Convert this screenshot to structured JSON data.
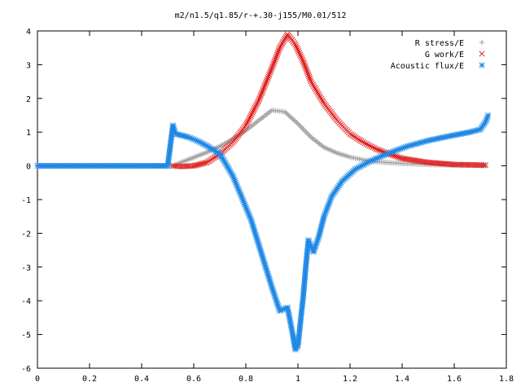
{
  "chart_data": {
    "type": "scatter",
    "title": "m2/n1.5/q1.85/r-+.30-j155/M0.01/512",
    "xlabel": "",
    "ylabel": "",
    "xlim": [
      0,
      1.8
    ],
    "ylim": [
      -6,
      4
    ],
    "x_ticks": [
      "0",
      "0.2",
      "0.4",
      "0.6",
      "0.8",
      "1",
      "1.2",
      "1.4",
      "1.6",
      "1.8"
    ],
    "y_ticks": [
      "4",
      "3",
      "2",
      "1",
      "0",
      "-1",
      "-2",
      "-3",
      "-4",
      "-5",
      "-6"
    ],
    "grid": false,
    "legend_position": "top-right",
    "series": [
      {
        "name": "R stress/E",
        "marker": "plus",
        "color": "#a0a0a0",
        "points": [
          [
            0.0,
            0.0
          ],
          [
            0.1,
            0.0
          ],
          [
            0.2,
            0.0
          ],
          [
            0.3,
            0.0
          ],
          [
            0.4,
            0.0
          ],
          [
            0.52,
            0.0
          ],
          [
            0.55,
            0.1
          ],
          [
            0.6,
            0.25
          ],
          [
            0.65,
            0.4
          ],
          [
            0.7,
            0.58
          ],
          [
            0.75,
            0.8
          ],
          [
            0.8,
            1.05
          ],
          [
            0.85,
            1.35
          ],
          [
            0.9,
            1.65
          ],
          [
            0.95,
            1.6
          ],
          [
            1.0,
            1.25
          ],
          [
            1.05,
            0.85
          ],
          [
            1.1,
            0.55
          ],
          [
            1.15,
            0.38
          ],
          [
            1.2,
            0.26
          ],
          [
            1.25,
            0.18
          ],
          [
            1.3,
            0.12
          ],
          [
            1.4,
            0.07
          ],
          [
            1.5,
            0.04
          ],
          [
            1.6,
            0.02
          ],
          [
            1.72,
            0.01
          ]
        ]
      },
      {
        "name": "G work/E",
        "marker": "cross",
        "color": "#e02020",
        "points": [
          [
            0.52,
            0.0
          ],
          [
            0.55,
            -0.02
          ],
          [
            0.6,
            0.0
          ],
          [
            0.65,
            0.1
          ],
          [
            0.7,
            0.35
          ],
          [
            0.75,
            0.7
          ],
          [
            0.8,
            1.2
          ],
          [
            0.85,
            1.95
          ],
          [
            0.9,
            2.9
          ],
          [
            0.93,
            3.5
          ],
          [
            0.96,
            3.9
          ],
          [
            0.99,
            3.6
          ],
          [
            1.02,
            3.1
          ],
          [
            1.05,
            2.5
          ],
          [
            1.1,
            1.85
          ],
          [
            1.15,
            1.35
          ],
          [
            1.2,
            0.95
          ],
          [
            1.25,
            0.7
          ],
          [
            1.3,
            0.5
          ],
          [
            1.35,
            0.35
          ],
          [
            1.4,
            0.22
          ],
          [
            1.5,
            0.1
          ],
          [
            1.6,
            0.04
          ],
          [
            1.72,
            0.02
          ]
        ]
      },
      {
        "name": "Acoustic flux/E",
        "marker": "star",
        "color": "#1e88e5",
        "points": [
          [
            0.0,
            0.0
          ],
          [
            0.1,
            0.0
          ],
          [
            0.2,
            0.0
          ],
          [
            0.3,
            0.0
          ],
          [
            0.4,
            0.0
          ],
          [
            0.5,
            0.0
          ],
          [
            0.52,
            1.2
          ],
          [
            0.53,
            0.95
          ],
          [
            0.58,
            0.85
          ],
          [
            0.62,
            0.72
          ],
          [
            0.66,
            0.55
          ],
          [
            0.7,
            0.35
          ],
          [
            0.72,
            0.1
          ],
          [
            0.75,
            -0.3
          ],
          [
            0.78,
            -0.85
          ],
          [
            0.82,
            -1.6
          ],
          [
            0.86,
            -2.6
          ],
          [
            0.9,
            -3.6
          ],
          [
            0.93,
            -4.3
          ],
          [
            0.96,
            -4.2
          ],
          [
            0.98,
            -5.0
          ],
          [
            0.99,
            -5.45
          ],
          [
            1.0,
            -5.35
          ],
          [
            1.01,
            -4.6
          ],
          [
            1.02,
            -3.9
          ],
          [
            1.03,
            -3.0
          ],
          [
            1.04,
            -2.2
          ],
          [
            1.06,
            -2.55
          ],
          [
            1.08,
            -2.1
          ],
          [
            1.1,
            -1.5
          ],
          [
            1.13,
            -0.9
          ],
          [
            1.17,
            -0.45
          ],
          [
            1.22,
            -0.1
          ],
          [
            1.28,
            0.15
          ],
          [
            1.35,
            0.38
          ],
          [
            1.42,
            0.58
          ],
          [
            1.5,
            0.75
          ],
          [
            1.58,
            0.88
          ],
          [
            1.66,
            1.0
          ],
          [
            1.7,
            1.08
          ],
          [
            1.72,
            1.3
          ],
          [
            1.73,
            1.5
          ]
        ]
      }
    ]
  }
}
